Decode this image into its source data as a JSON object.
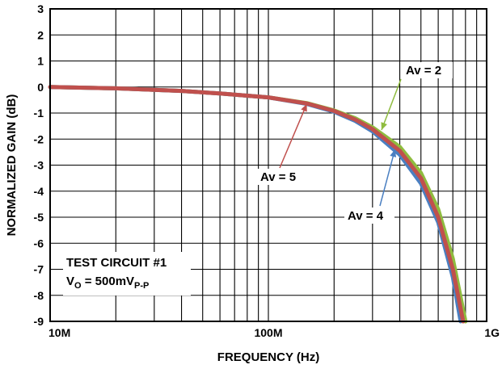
{
  "chart_data": {
    "type": "line",
    "xlabel": "FREQUENCY (Hz)",
    "ylabel": "NORMALIZED GAIN (dB)",
    "x_scale": "log",
    "xlim": [
      10000000,
      1000000000
    ],
    "ylim": [
      -9,
      3
    ],
    "x_ticks": [
      {
        "value": 10000000,
        "label": "10M"
      },
      {
        "value": 100000000,
        "label": "100M"
      },
      {
        "value": 1000000000,
        "label": "1G"
      }
    ],
    "y_ticks": [
      {
        "value": 3,
        "label": "3"
      },
      {
        "value": 2,
        "label": "2"
      },
      {
        "value": 1,
        "label": "1"
      },
      {
        "value": 0,
        "label": "0"
      },
      {
        "value": -1,
        "label": "-1"
      },
      {
        "value": -2,
        "label": "-2"
      },
      {
        "value": -3,
        "label": "-3"
      },
      {
        "value": -4,
        "label": "-4"
      },
      {
        "value": -5,
        "label": "-5"
      },
      {
        "value": -6,
        "label": "-6"
      },
      {
        "value": -7,
        "label": "-7"
      },
      {
        "value": -8,
        "label": "-8"
      },
      {
        "value": -9,
        "label": "-9"
      }
    ],
    "grid": true,
    "series": [
      {
        "name": "Av = 2",
        "color": "#8fbc3f",
        "x": [
          10000000,
          20000000,
          40000000,
          60000000,
          100000000,
          150000000,
          200000000,
          250000000,
          300000000,
          400000000,
          500000000,
          600000000,
          700000000,
          800000000
        ],
        "y": [
          0,
          -0.05,
          -0.15,
          -0.25,
          -0.4,
          -0.62,
          -0.9,
          -1.2,
          -1.55,
          -2.3,
          -3.3,
          -4.7,
          -6.6,
          -9
        ]
      },
      {
        "name": "Av = 4",
        "color": "#4a7fc1",
        "x": [
          10000000,
          20000000,
          40000000,
          60000000,
          100000000,
          150000000,
          200000000,
          250000000,
          300000000,
          400000000,
          500000000,
          600000000,
          700000000,
          760000000
        ],
        "y": [
          0,
          -0.05,
          -0.15,
          -0.25,
          -0.4,
          -0.65,
          -0.95,
          -1.3,
          -1.7,
          -2.6,
          -3.7,
          -5.2,
          -7.3,
          -9
        ]
      },
      {
        "name": "Av = 5",
        "color": "#c0504d",
        "x": [
          10000000,
          20000000,
          40000000,
          60000000,
          100000000,
          150000000,
          200000000,
          250000000,
          300000000,
          400000000,
          500000000,
          600000000,
          700000000,
          780000000
        ],
        "y": [
          0,
          -0.05,
          -0.15,
          -0.25,
          -0.4,
          -0.63,
          -0.92,
          -1.25,
          -1.62,
          -2.45,
          -3.5,
          -5.0,
          -7.0,
          -9
        ]
      }
    ],
    "annotations": [
      {
        "text": "Av = 2",
        "series": 0,
        "x": 330000000,
        "y": -1.65
      },
      {
        "text": "Av = 4",
        "series": 1,
        "x": 380000000,
        "y": -2.4
      },
      {
        "text": "Av = 5",
        "series": 2,
        "x": 150000000,
        "y": -0.65
      }
    ],
    "note": {
      "line1": "TEST CIRCUIT #1",
      "line2_prefix": "V",
      "line2_prefix_sub": "O",
      "line2_mid": " = 500mV",
      "line2_suffix_sub": "P-P"
    }
  }
}
